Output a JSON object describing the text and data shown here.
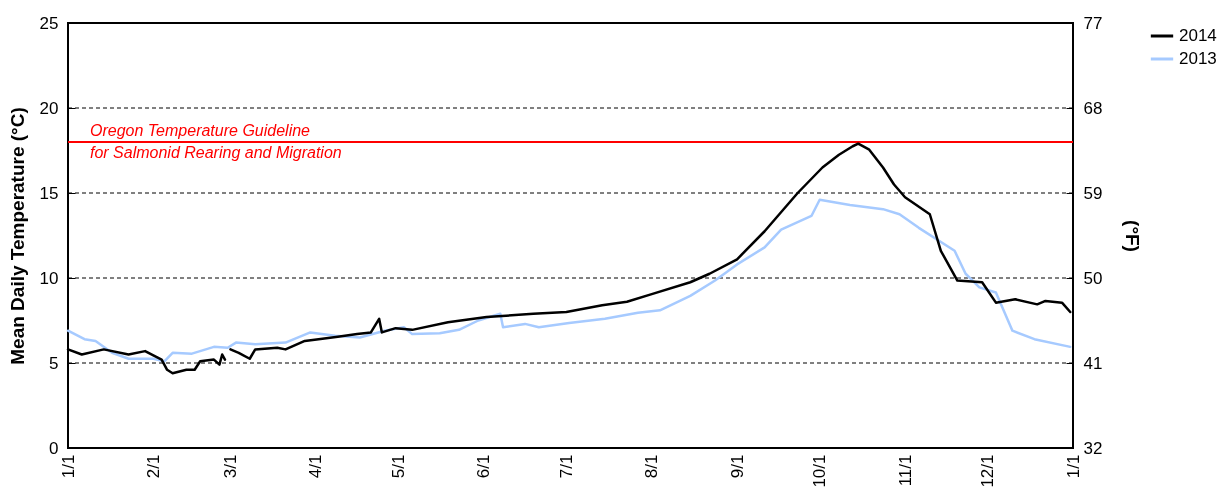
{
  "chart_data": {
    "type": "line",
    "ylabel": "Mean Daily Temperature (°C)",
    "y2label": "(°F)",
    "xlim": [
      "2014-01-01",
      "2015-01-01"
    ],
    "xticks": [
      {
        "value": "2014-01-01",
        "label": "1/1"
      },
      {
        "value": "2014-02-01",
        "label": "2/1"
      },
      {
        "value": "2014-03-01",
        "label": "3/1"
      },
      {
        "value": "2014-04-01",
        "label": "4/1"
      },
      {
        "value": "2014-05-01",
        "label": "5/1"
      },
      {
        "value": "2014-06-01",
        "label": "6/1"
      },
      {
        "value": "2014-07-01",
        "label": "7/1"
      },
      {
        "value": "2014-08-01",
        "label": "8/1"
      },
      {
        "value": "2014-09-01",
        "label": "9/1"
      },
      {
        "value": "2014-10-01",
        "label": "10/1"
      },
      {
        "value": "2014-11-01",
        "label": "11/1"
      },
      {
        "value": "2014-12-01",
        "label": "12/1"
      },
      {
        "value": "2015-01-01",
        "label": "1/1"
      }
    ],
    "ylim": [
      0,
      25
    ],
    "yticks": [
      0,
      5,
      10,
      15,
      20,
      25
    ],
    "y2lim": [
      32,
      77
    ],
    "y2ticks": [
      32,
      41,
      50,
      59,
      68,
      77
    ],
    "grid": true,
    "legend": "top right",
    "line_style": "solid",
    "ref_lines": [
      {
        "axis": "y",
        "value": 18,
        "label": "Oregon Temperature Guideline\nfor Salmonid Rearing and Migration",
        "color": "#ff0000"
      }
    ],
    "series": [
      {
        "name": "2014",
        "color": "#000000",
        "x": [
          "2014-01-01",
          "2014-01-06",
          "2014-01-14",
          "2014-01-23",
          "2014-01-29",
          "2014-02-01",
          "2014-02-04",
          "2014-02-06",
          "2014-02-08",
          "2014-02-13",
          "2014-02-16",
          "2014-02-18",
          "2014-02-23",
          "2014-02-25",
          "2014-02-26",
          "2014-02-27",
          "2014-02-28",
          "2014-03-01",
          "2014-03-04",
          "2014-03-08",
          "2014-03-10",
          "2014-03-18",
          "2014-03-21",
          "2014-03-28",
          "2014-04-02",
          "2014-04-09",
          "2014-04-16",
          "2014-04-21",
          "2014-04-24",
          "2014-04-25",
          "2014-04-30",
          "2014-05-06",
          "2014-05-19",
          "2014-06-02",
          "2014-06-19",
          "2014-07-01",
          "2014-07-14",
          "2014-07-23",
          "2014-08-01",
          "2014-08-15",
          "2014-08-22",
          "2014-09-01",
          "2014-09-11",
          "2014-09-23",
          "2014-10-02",
          "2014-10-08",
          "2014-10-13",
          "2014-10-15",
          "2014-10-19",
          "2014-10-24",
          "2014-10-28",
          "2014-11-01",
          "2014-11-10",
          "2014-11-14",
          "2014-11-20",
          "2014-11-29",
          "2014-12-04",
          "2014-12-11",
          "2014-12-19",
          "2014-12-22",
          "2014-12-28",
          "2014-12-31"
        ],
        "values": [
          5.8,
          5.5,
          5.8,
          5.5,
          5.7,
          5.45,
          5.2,
          4.6,
          4.4,
          4.6,
          4.6,
          5.1,
          5.2,
          4.9,
          5.5,
          5.2,
          null,
          5.8,
          5.6,
          5.25,
          5.8,
          5.9,
          5.8,
          6.3,
          6.4,
          6.55,
          6.7,
          6.8,
          7.6,
          6.8,
          7.05,
          6.95,
          7.4,
          7.7,
          7.9,
          8,
          8.4,
          8.6,
          9.05,
          9.75,
          10.25,
          11.1,
          12.75,
          15,
          16.5,
          17.25,
          17.75,
          17.9,
          17.55,
          16.5,
          15.5,
          14.75,
          13.75,
          11.6,
          9.85,
          9.75,
          8.55,
          8.75,
          8.45,
          8.65,
          8.55,
          8
        ]
      },
      {
        "name": "2013",
        "color": "#a6caff",
        "x": [
          "2014-01-01",
          "2014-01-07",
          "2014-01-11",
          "2014-01-17",
          "2014-01-23",
          "2014-02-01",
          "2014-02-05",
          "2014-02-08",
          "2014-02-15",
          "2014-02-23",
          "2014-02-28",
          "2014-03-03",
          "2014-03-10",
          "2014-03-21",
          "2014-03-30",
          "2014-04-08",
          "2014-04-17",
          "2014-04-26",
          "2014-05-03",
          "2014-05-06",
          "2014-05-16",
          "2014-05-23",
          "2014-05-30",
          "2014-06-07",
          "2014-06-08",
          "2014-06-16",
          "2014-06-21",
          "2014-07-02",
          "2014-07-15",
          "2014-07-27",
          "2014-08-04",
          "2014-08-15",
          "2014-08-24",
          "2014-09-01",
          "2014-09-11",
          "2014-09-17",
          "2014-09-28",
          "2014-10-01",
          "2014-10-12",
          "2014-10-24",
          "2014-10-30",
          "2014-11-06",
          "2014-11-19",
          "2014-11-23",
          "2014-11-28",
          "2014-12-04",
          "2014-12-10",
          "2014-12-18",
          "2014-12-31"
        ],
        "values": [
          6.9,
          6.4,
          6.3,
          5.6,
          5.25,
          5.25,
          5.1,
          5.6,
          5.55,
          5.95,
          5.9,
          6.2,
          6.1,
          6.2,
          6.8,
          6.6,
          6.5,
          6.9,
          7.1,
          6.7,
          6.75,
          6.95,
          7.5,
          7.9,
          7.1,
          7.3,
          7.1,
          7.35,
          7.6,
          7.95,
          8.1,
          8.95,
          9.85,
          10.8,
          11.8,
          12.85,
          13.65,
          14.6,
          14.3,
          14.05,
          13.75,
          12.95,
          11.6,
          10.25,
          9.45,
          9.15,
          6.9,
          6.4,
          5.95
        ]
      }
    ]
  }
}
